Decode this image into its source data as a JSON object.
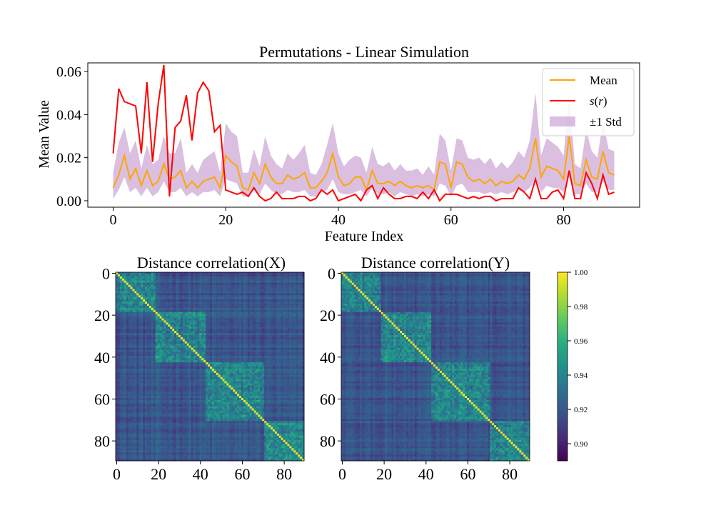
{
  "chart_data": [
    {
      "type": "line",
      "title": "Permutations - Linear Simulation",
      "xlabel": "Feature Index",
      "ylabel": "Mean Value",
      "xlim": [
        -4.5,
        93.5
      ],
      "ylim": [
        -0.003,
        0.064
      ],
      "xticks": [
        0,
        20,
        40,
        60,
        80
      ],
      "yticks": [
        0.0,
        0.02,
        0.04,
        0.06
      ],
      "ytick_labels": [
        "0.00",
        "0.02",
        "0.04",
        "0.06"
      ],
      "grid": false,
      "legend_position": "upper right",
      "x": [
        0,
        1,
        2,
        3,
        4,
        5,
        6,
        7,
        8,
        9,
        10,
        11,
        12,
        13,
        14,
        15,
        16,
        17,
        18,
        19,
        20,
        21,
        22,
        23,
        24,
        25,
        26,
        27,
        28,
        29,
        30,
        31,
        32,
        33,
        34,
        35,
        36,
        37,
        38,
        39,
        40,
        41,
        42,
        43,
        44,
        45,
        46,
        47,
        48,
        49,
        50,
        51,
        52,
        53,
        54,
        55,
        56,
        57,
        58,
        59,
        60,
        61,
        62,
        63,
        64,
        65,
        66,
        67,
        68,
        69,
        70,
        71,
        72,
        73,
        74,
        75,
        76,
        77,
        78,
        79,
        80,
        81,
        82,
        83,
        84,
        85,
        86,
        87,
        88,
        89
      ],
      "series": [
        {
          "name": "Mean",
          "kind": "line",
          "color": "#ffa500",
          "values": [
            0.006,
            0.012,
            0.021,
            0.01,
            0.015,
            0.007,
            0.014,
            0.007,
            0.009,
            0.017,
            0.01,
            0.011,
            0.014,
            0.006,
            0.009,
            0.006,
            0.009,
            0.01,
            0.011,
            0.006,
            0.021,
            0.018,
            0.016,
            0.006,
            0.005,
            0.013,
            0.008,
            0.017,
            0.011,
            0.008,
            0.008,
            0.012,
            0.01,
            0.011,
            0.013,
            0.006,
            0.006,
            0.009,
            0.013,
            0.022,
            0.011,
            0.007,
            0.008,
            0.011,
            0.011,
            0.005,
            0.014,
            0.008,
            0.008,
            0.009,
            0.007,
            0.009,
            0.007,
            0.006,
            0.007,
            0.006,
            0.007,
            0.005,
            0.018,
            0.017,
            0.006,
            0.018,
            0.017,
            0.011,
            0.009,
            0.01,
            0.008,
            0.01,
            0.007,
            0.009,
            0.008,
            0.009,
            0.012,
            0.01,
            0.015,
            0.029,
            0.011,
            0.016,
            0.015,
            0.014,
            0.01,
            0.03,
            0.008,
            0.007,
            0.019,
            0.011,
            0.01,
            0.023,
            0.013,
            0.012
          ]
        },
        {
          "name": "s(r)",
          "kind": "line",
          "color": "#ff0000",
          "values": [
            0.022,
            0.052,
            0.046,
            0.045,
            0.044,
            0.022,
            0.055,
            0.018,
            0.045,
            0.063,
            0.002,
            0.034,
            0.037,
            0.049,
            0.028,
            0.05,
            0.055,
            0.051,
            0.032,
            0.035,
            0.005,
            0.004,
            0.003,
            0.004,
            0.002,
            0.006,
            0.002,
            0.0,
            0.001,
            0.004,
            0.001,
            0.001,
            0.001,
            0.002,
            0.002,
            0.0,
            0.001,
            0.005,
            0.003,
            0.005,
            0.0,
            0.001,
            0.002,
            0.003,
            0.0,
            0.005,
            0.007,
            0.001,
            0.006,
            0.003,
            0.001,
            0.001,
            0.002,
            0.002,
            0.001,
            0.004,
            0.001,
            0.005,
            0.0,
            0.003,
            0.003,
            0.003,
            0.002,
            0.001,
            0.002,
            0.001,
            0.002,
            0.002,
            0.0,
            0.001,
            0.001,
            0.001,
            0.006,
            0.004,
            0.001,
            0.01,
            0.001,
            0.001,
            0.004,
            0.005,
            0.001,
            0.014,
            0.001,
            0.001,
            0.013,
            0.008,
            0.001,
            0.012,
            0.003,
            0.004
          ]
        }
      ],
      "band": {
        "name": "±1 Std",
        "color": "#b57fc4",
        "opacity": 0.5,
        "lower": [
          0.001,
          0.005,
          0.011,
          0.004,
          0.006,
          0.002,
          0.006,
          0.002,
          0.004,
          0.009,
          0.004,
          0.004,
          0.006,
          0.002,
          0.004,
          0.002,
          0.004,
          0.004,
          0.005,
          0.002,
          0.01,
          0.009,
          0.008,
          0.002,
          0.002,
          0.005,
          0.003,
          0.008,
          0.005,
          0.003,
          0.003,
          0.005,
          0.004,
          0.004,
          0.005,
          0.002,
          0.002,
          0.004,
          0.005,
          0.01,
          0.004,
          0.003,
          0.003,
          0.004,
          0.005,
          0.002,
          0.006,
          0.003,
          0.003,
          0.004,
          0.002,
          0.004,
          0.003,
          0.002,
          0.003,
          0.002,
          0.003,
          0.002,
          0.008,
          0.007,
          0.002,
          0.007,
          0.008,
          0.004,
          0.004,
          0.004,
          0.003,
          0.004,
          0.003,
          0.004,
          0.003,
          0.004,
          0.005,
          0.004,
          0.006,
          0.01,
          0.004,
          0.007,
          0.006,
          0.006,
          0.004,
          0.011,
          0.003,
          0.003,
          0.008,
          0.004,
          0.004,
          0.009,
          0.005,
          0.005
        ],
        "upper": [
          0.013,
          0.027,
          0.034,
          0.022,
          0.028,
          0.015,
          0.026,
          0.017,
          0.019,
          0.03,
          0.022,
          0.022,
          0.029,
          0.013,
          0.017,
          0.013,
          0.019,
          0.021,
          0.023,
          0.013,
          0.036,
          0.032,
          0.03,
          0.013,
          0.013,
          0.024,
          0.016,
          0.03,
          0.021,
          0.017,
          0.015,
          0.022,
          0.019,
          0.022,
          0.026,
          0.013,
          0.012,
          0.017,
          0.026,
          0.036,
          0.022,
          0.016,
          0.019,
          0.021,
          0.02,
          0.013,
          0.025,
          0.017,
          0.016,
          0.018,
          0.014,
          0.017,
          0.014,
          0.014,
          0.015,
          0.012,
          0.016,
          0.012,
          0.031,
          0.028,
          0.014,
          0.029,
          0.028,
          0.02,
          0.019,
          0.02,
          0.017,
          0.02,
          0.015,
          0.018,
          0.015,
          0.018,
          0.023,
          0.02,
          0.028,
          0.05,
          0.021,
          0.029,
          0.027,
          0.025,
          0.021,
          0.049,
          0.017,
          0.015,
          0.033,
          0.023,
          0.02,
          0.037,
          0.024,
          0.023
        ]
      }
    },
    {
      "type": "heatmap",
      "title": "Distance correlation(X)",
      "size": 90,
      "xticks": [
        0,
        20,
        40,
        60,
        80
      ],
      "yticks": [
        0,
        20,
        40,
        60,
        80
      ],
      "colormap": "viridis",
      "vmin": 0.89,
      "vmax": 1.0,
      "blocks": [
        [
          0,
          18
        ],
        [
          19,
          42
        ],
        [
          43,
          70
        ],
        [
          71,
          89
        ]
      ],
      "blocks_shown_approximately": true
    },
    {
      "type": "heatmap",
      "title": "Distance correlation(Y)",
      "size": 90,
      "xticks": [
        0,
        20,
        40,
        60,
        80
      ],
      "yticks": [
        0,
        20,
        40,
        60,
        80
      ],
      "colormap": "viridis",
      "vmin": 0.89,
      "vmax": 1.0,
      "blocks": [
        [
          0,
          18
        ],
        [
          19,
          42
        ],
        [
          43,
          70
        ],
        [
          71,
          89
        ]
      ],
      "blocks_shown_approximately": true
    },
    {
      "type": "colorbar",
      "colormap": "viridis",
      "range": [
        0.89,
        1.0
      ],
      "ticks": [
        0.9,
        0.92,
        0.94,
        0.96,
        0.98,
        1.0
      ],
      "tick_labels": [
        "0.90",
        "0.92",
        "0.94",
        "0.96",
        "0.98",
        "1.00"
      ]
    }
  ]
}
